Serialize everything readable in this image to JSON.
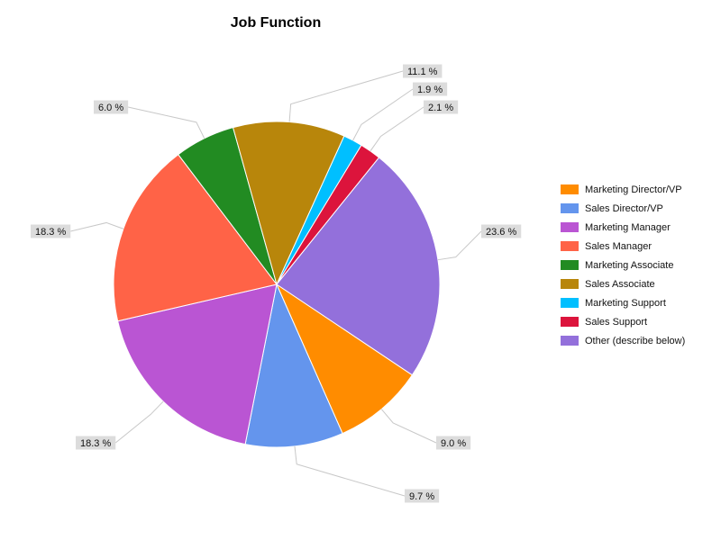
{
  "chart_data": {
    "type": "pie",
    "title": "Job Function",
    "legend_position": "right",
    "slices": [
      {
        "label": "Marketing Director/VP",
        "value": 9.0,
        "display": "9.0 %",
        "color": "#FF8C00"
      },
      {
        "label": "Sales Director/VP",
        "value": 9.7,
        "display": "9.7 %",
        "color": "#6495ED"
      },
      {
        "label": "Marketing Manager",
        "value": 18.3,
        "display": "18.3 %",
        "color": "#BA55D3"
      },
      {
        "label": "Sales Manager",
        "value": 18.3,
        "display": "18.3 %",
        "color": "#FF6347"
      },
      {
        "label": "Marketing Associate",
        "value": 6.0,
        "display": "6.0 %",
        "color": "#228B22"
      },
      {
        "label": "Sales Associate",
        "value": 11.1,
        "display": "11.1 %",
        "color": "#B8860B"
      },
      {
        "label": "Marketing Support",
        "value": 1.9,
        "display": "1.9 %",
        "color": "#00BFFF"
      },
      {
        "label": "Sales Support",
        "value": 2.1,
        "display": "2.1 %",
        "color": "#DC143C"
      },
      {
        "label": "Other (describe below)",
        "value": 23.6,
        "display": "23.6 %",
        "color": "#9370DB"
      }
    ]
  }
}
